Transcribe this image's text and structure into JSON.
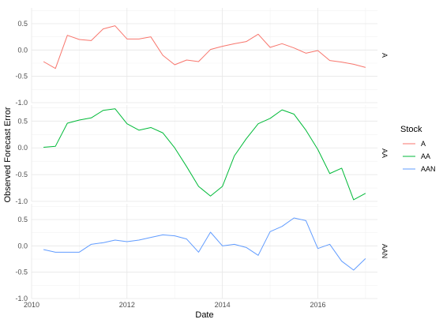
{
  "chart_data": {
    "type": "line",
    "xlabel": "Date",
    "ylabel": "Observed Forecast Error",
    "xlim": [
      2010.0,
      2017.25
    ],
    "ylim": [
      -1.0,
      0.8
    ],
    "x_ticks": [
      2010,
      2012,
      2014,
      2016
    ],
    "x_tick_labels": [
      "2010",
      "2012",
      "2014",
      "2016"
    ],
    "y_ticks": [
      -1.0,
      -0.5,
      0.0,
      0.5
    ],
    "y_tick_labels": [
      "-1.0",
      "-0.5",
      "0.0",
      "0.5"
    ],
    "grid": true,
    "facet_by": "Stock",
    "legend": {
      "title": "Stock",
      "position": "right",
      "entries": [
        {
          "label": "A",
          "color": "#F8766D"
        },
        {
          "label": "AA",
          "color": "#00BA38"
        },
        {
          "label": "AAN",
          "color": "#619CFF"
        }
      ]
    },
    "series": [
      {
        "name": "A",
        "color": "#F8766D",
        "x": [
          2010.25,
          2010.5,
          2010.75,
          2011.0,
          2011.25,
          2011.5,
          2011.75,
          2012.0,
          2012.25,
          2012.5,
          2012.75,
          2013.0,
          2013.25,
          2013.5,
          2013.75,
          2014.0,
          2014.25,
          2014.5,
          2014.75,
          2015.0,
          2015.25,
          2015.5,
          2015.75,
          2016.0,
          2016.25,
          2016.5,
          2016.75,
          2017.0
        ],
        "values": [
          -0.22,
          -0.35,
          0.28,
          0.2,
          0.18,
          0.4,
          0.46,
          0.21,
          0.21,
          0.25,
          -0.1,
          -0.28,
          -0.19,
          -0.22,
          0.01,
          0.07,
          0.12,
          0.16,
          0.3,
          0.05,
          0.12,
          0.04,
          -0.06,
          -0.01,
          -0.2,
          -0.23,
          -0.27,
          -0.33
        ]
      },
      {
        "name": "AA",
        "color": "#00BA38",
        "x": [
          2010.25,
          2010.5,
          2010.75,
          2011.0,
          2011.25,
          2011.5,
          2011.75,
          2012.0,
          2012.25,
          2012.5,
          2012.75,
          2013.0,
          2013.25,
          2013.5,
          2013.75,
          2014.0,
          2014.25,
          2014.5,
          2014.75,
          2015.0,
          2015.25,
          2015.5,
          2015.75,
          2016.0,
          2016.25,
          2016.5,
          2016.75,
          2017.0
        ],
        "values": [
          0.01,
          0.03,
          0.46,
          0.52,
          0.56,
          0.7,
          0.73,
          0.45,
          0.33,
          0.38,
          0.28,
          0.0,
          -0.35,
          -0.72,
          -0.9,
          -0.72,
          -0.15,
          0.17,
          0.45,
          0.55,
          0.71,
          0.63,
          0.33,
          -0.03,
          -0.48,
          -0.38,
          -0.97,
          -0.85
        ]
      },
      {
        "name": "AAN",
        "color": "#619CFF",
        "x": [
          2010.25,
          2010.5,
          2010.75,
          2011.0,
          2011.25,
          2011.5,
          2011.75,
          2012.0,
          2012.25,
          2012.5,
          2012.75,
          2013.0,
          2013.25,
          2013.5,
          2013.75,
          2014.0,
          2014.25,
          2014.5,
          2014.75,
          2015.0,
          2015.25,
          2015.5,
          2015.75,
          2016.0,
          2016.25,
          2016.5,
          2016.75,
          2017.0
        ],
        "values": [
          -0.07,
          -0.12,
          -0.12,
          -0.12,
          0.03,
          0.06,
          0.11,
          0.08,
          0.11,
          0.16,
          0.21,
          0.19,
          0.13,
          -0.12,
          0.26,
          0.0,
          0.03,
          -0.03,
          -0.18,
          0.27,
          0.37,
          0.53,
          0.48,
          -0.05,
          0.03,
          -0.29,
          -0.46,
          -0.24
        ]
      }
    ]
  }
}
